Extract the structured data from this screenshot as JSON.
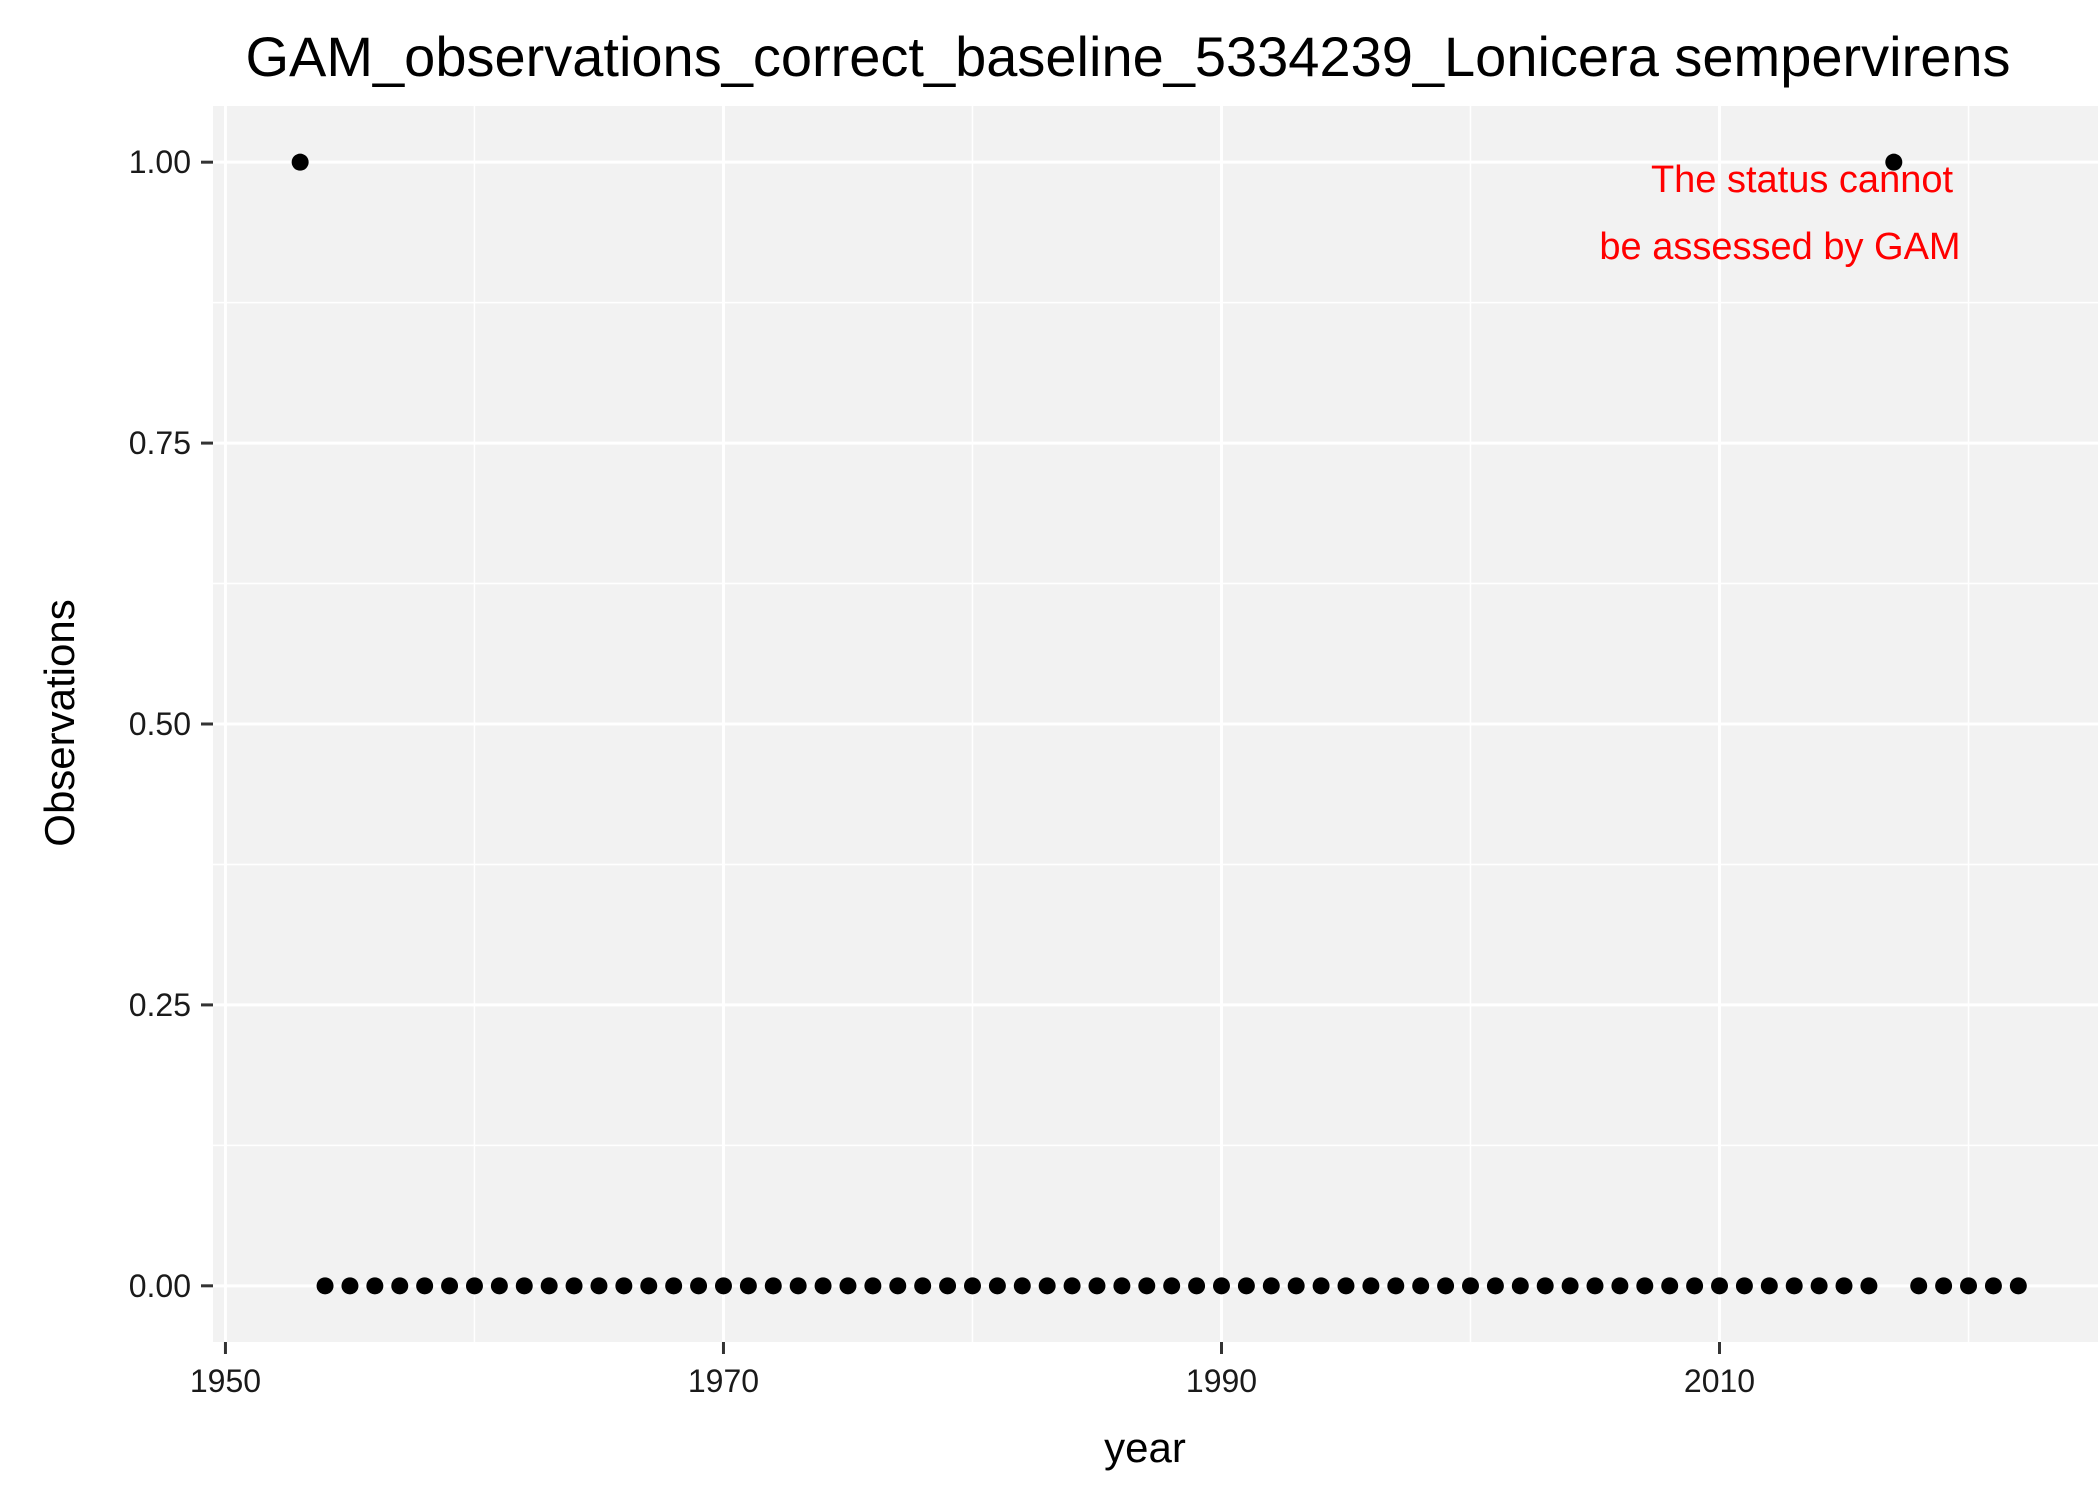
{
  "chart_data": {
    "type": "scatter",
    "title": "GAM_observations_correct_baseline_5334239_Lonicera sempervirens",
    "xlabel": "year",
    "ylabel": "Observations",
    "xlim": [
      1949.5,
      2025.2
    ],
    "ylim": [
      -0.05,
      1.05
    ],
    "x_ticks": [
      1950,
      1970,
      1990,
      2010
    ],
    "x_tick_labels": [
      "1950",
      "1970",
      "1990",
      "2010"
    ],
    "y_ticks": [
      0,
      0.25,
      0.5,
      0.75,
      1.0
    ],
    "y_tick_labels": [
      "0.00",
      "0.25",
      "0.50",
      "0.75",
      "1.00"
    ],
    "grid": true,
    "panel_background": "#f2f2f2",
    "grid_color": "#ffffff",
    "point_color": "#000000",
    "annotation": {
      "lines": [
        "The status cannot",
        "be assessed by GAM"
      ],
      "color": "#ff0000",
      "position": "top-right"
    },
    "series": [
      {
        "x": [
          1953,
          1954,
          1955,
          1956,
          1957,
          1958,
          1959,
          1960,
          1961,
          1962,
          1963,
          1964,
          1965,
          1966,
          1967,
          1968,
          1969,
          1970,
          1971,
          1972,
          1973,
          1974,
          1975,
          1976,
          1977,
          1978,
          1979,
          1980,
          1981,
          1982,
          1983,
          1984,
          1985,
          1986,
          1987,
          1988,
          1989,
          1990,
          1991,
          1992,
          1993,
          1994,
          1995,
          1996,
          1997,
          1998,
          1999,
          2000,
          2001,
          2002,
          2003,
          2004,
          2005,
          2006,
          2007,
          2008,
          2009,
          2010,
          2011,
          2012,
          2013,
          2014,
          2015,
          2016,
          2017,
          2018,
          2019,
          2020,
          2021,
          2022
        ],
        "y": [
          1,
          0,
          0,
          0,
          0,
          0,
          0,
          0,
          0,
          0,
          0,
          0,
          0,
          0,
          0,
          0,
          0,
          0,
          0,
          0,
          0,
          0,
          0,
          0,
          0,
          0,
          0,
          0,
          0,
          0,
          0,
          0,
          0,
          0,
          0,
          0,
          0,
          0,
          0,
          0,
          0,
          0,
          0,
          0,
          0,
          0,
          0,
          0,
          0,
          0,
          0,
          0,
          0,
          0,
          0,
          0,
          0,
          0,
          0,
          0,
          0,
          0,
          0,
          0,
          1,
          0,
          0,
          0,
          0,
          0
        ]
      }
    ]
  }
}
